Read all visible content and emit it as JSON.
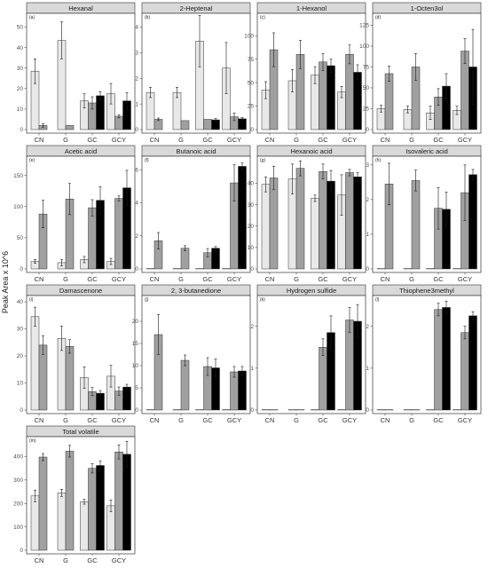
{
  "y_axis_title": "Peak Area x 10^6",
  "chart_data": {
    "type": "bar",
    "categories": [
      "CN",
      "G",
      "GC",
      "GCY"
    ],
    "series_colors": [
      "#e8e8e8",
      "#a0a0a0",
      "#000000"
    ],
    "panels": [
      {
        "tag": "(a)",
        "title": "Hexanal",
        "ylim": [
          0,
          55
        ],
        "ticks": [
          0,
          10,
          20,
          30,
          40,
          50
        ],
        "values": [
          [
            28.5,
            2.0,
            null
          ],
          [
            43.5,
            2.0,
            null
          ],
          [
            14.0,
            13.0,
            16.5
          ],
          [
            17.5,
            6.5,
            14.0
          ]
        ],
        "errors": [
          [
            6.0,
            0.8,
            null
          ],
          [
            9.0,
            0,
            null
          ],
          [
            3.5,
            3.0,
            2.0
          ],
          [
            5.0,
            0.8,
            4.0
          ]
        ]
      },
      {
        "tag": "(b)",
        "title": "2-Heptenal",
        "ylim": [
          0,
          4.4
        ],
        "ticks": [
          0,
          1,
          2,
          3,
          4
        ],
        "values": [
          [
            1.45,
            0.4,
            null
          ],
          [
            1.45,
            0.35,
            null
          ],
          [
            3.45,
            0.4,
            0.38
          ],
          [
            2.4,
            0.5,
            0.42
          ]
        ],
        "errors": [
          [
            0.2,
            0.05,
            null
          ],
          [
            0.2,
            0,
            null
          ],
          [
            1.0,
            0,
            0.05
          ],
          [
            1.0,
            0.15,
            0.05
          ]
        ]
      },
      {
        "tag": "(c)",
        "title": "1-Hexanol",
        "ylim": [
          0,
          120
        ],
        "ticks": [
          0,
          25,
          50,
          75,
          100
        ],
        "values": [
          [
            42,
            85,
            null
          ],
          [
            52,
            80,
            null
          ],
          [
            58,
            72,
            68
          ],
          [
            40,
            80,
            61
          ]
        ],
        "errors": [
          [
            9,
            18,
            null
          ],
          [
            12,
            15,
            null
          ],
          [
            9,
            9,
            7
          ],
          [
            6,
            10,
            8
          ]
        ]
      },
      {
        "tag": "(d)",
        "title": "1-Octen3ol",
        "ylim": [
          0,
          135
        ],
        "ticks": [
          0,
          25,
          50,
          75,
          100,
          125
        ],
        "values": [
          [
            25,
            67,
            null
          ],
          [
            24,
            75,
            null
          ],
          [
            20,
            39,
            52
          ],
          [
            23,
            94,
            75
          ]
        ],
        "errors": [
          [
            4,
            9,
            null
          ],
          [
            4,
            16,
            null
          ],
          [
            8,
            10,
            15
          ],
          [
            5,
            15,
            45
          ]
        ]
      },
      {
        "tag": "(e)",
        "title": "Acetic acid",
        "ylim": [
          0,
          175
        ],
        "ticks": [
          0,
          50,
          100,
          150
        ],
        "values": [
          [
            12,
            88,
            null
          ],
          [
            10,
            112,
            null
          ],
          [
            15,
            98,
            110
          ],
          [
            12,
            113,
            130
          ]
        ],
        "errors": [
          [
            3,
            22,
            null
          ],
          [
            5,
            25,
            null
          ],
          [
            5,
            13,
            22
          ],
          [
            5,
            4,
            28
          ]
        ]
      },
      {
        "tag": "(f)",
        "title": "Butanoic acid",
        "ylim": [
          0,
          6.6
        ],
        "ticks": [
          0,
          2,
          4,
          6
        ],
        "values": [
          [
            0,
            1.7,
            null
          ],
          [
            0,
            1.25,
            null
          ],
          [
            0,
            0.98,
            1.25
          ],
          [
            0,
            5.2,
            6.2
          ]
        ],
        "errors": [
          [
            0,
            0.5,
            null
          ],
          [
            0,
            0.15,
            null
          ],
          [
            0,
            0.25,
            0.1
          ],
          [
            0,
            1.1,
            0.2
          ]
        ]
      },
      {
        "tag": "(g)",
        "title": "Hexanoic acid",
        "ylim": [
          0,
          51
        ],
        "ticks": [
          0,
          10,
          20,
          30,
          40
        ],
        "values": [
          [
            39.5,
            42.5,
            null
          ],
          [
            42,
            47,
            null
          ],
          [
            33,
            45.5,
            41
          ],
          [
            34.5,
            45,
            43
          ]
        ],
        "errors": [
          [
            3.5,
            5.5,
            null
          ],
          [
            7.0,
            3.5,
            null
          ],
          [
            1.5,
            3.5,
            5.0
          ],
          [
            9.5,
            1.5,
            2.0
          ]
        ]
      },
      {
        "tag": "(h)",
        "title": "Isovaleric acid",
        "ylim": [
          0,
          3.15
        ],
        "ticks": [
          0,
          1,
          2,
          3
        ],
        "values": [
          [
            0,
            2.45,
            null
          ],
          [
            0,
            2.55,
            null
          ],
          [
            0,
            1.75,
            1.72
          ],
          [
            0,
            2.2,
            2.72
          ]
        ],
        "errors": [
          [
            0,
            0.6,
            null
          ],
          [
            0,
            0.3,
            null
          ],
          [
            0,
            0.6,
            0.5
          ],
          [
            0,
            0.8,
            0.15
          ]
        ]
      },
      {
        "tag": "(i)",
        "title": "Damascenone",
        "ylim": [
          0,
          41
        ],
        "ticks": [
          0,
          10,
          20,
          30,
          40
        ],
        "values": [
          [
            34.5,
            24.0,
            null
          ],
          [
            26.5,
            23.5,
            null
          ],
          [
            12.0,
            6.8,
            6.2
          ],
          [
            12.5,
            7.0,
            8.5
          ]
        ],
        "errors": [
          [
            3.5,
            3.5,
            null
          ],
          [
            4.5,
            2.5,
            null
          ],
          [
            4.0,
            1.5,
            1.0
          ],
          [
            4.0,
            1.5,
            1.0
          ]
        ]
      },
      {
        "tag": "(j)",
        "title": "2, 3-butanedione",
        "ylim": [
          0,
          25
        ],
        "ticks": [
          0,
          5,
          10,
          15,
          20
        ],
        "values": [
          [
            0,
            17,
            null
          ],
          [
            0,
            11.2,
            null
          ],
          [
            0,
            9.8,
            9.5
          ],
          [
            0,
            8.6,
            8.8
          ]
        ],
        "errors": [
          [
            0,
            4.5,
            null
          ],
          [
            0,
            1.2,
            null
          ],
          [
            0,
            2.0,
            2.0
          ],
          [
            0,
            1.2,
            1.0
          ]
        ]
      },
      {
        "tag": "(k)",
        "title": "Hydrogen sulfide",
        "ylim": [
          0,
          2.65
        ],
        "ticks": [
          0,
          1,
          2
        ],
        "values": [
          [
            0,
            0,
            null
          ],
          [
            0,
            0,
            null
          ],
          [
            0,
            1.5,
            1.85
          ],
          [
            0,
            2.15,
            2.12
          ]
        ],
        "errors": [
          [
            0,
            0,
            null
          ],
          [
            0,
            0,
            null
          ],
          [
            0,
            0.2,
            0.4
          ],
          [
            0,
            0.3,
            0.4
          ]
        ]
      },
      {
        "tag": "(l)",
        "title": "Thiophene3methyl",
        "ylim": [
          0,
          2.65
        ],
        "ticks": [
          0,
          1,
          2
        ],
        "values": [
          [
            0,
            0,
            null
          ],
          [
            0,
            0,
            null
          ],
          [
            0,
            2.4,
            2.45
          ],
          [
            0,
            1.85,
            2.25
          ]
        ],
        "errors": [
          [
            0,
            0,
            null
          ],
          [
            0,
            0,
            null
          ],
          [
            0,
            0.15,
            0.15
          ],
          [
            0,
            0.15,
            0.1
          ]
        ]
      },
      {
        "tag": "(m)",
        "title": "Total volatile",
        "ylim": [
          0,
          470
        ],
        "ticks": [
          0,
          100,
          200,
          300,
          400
        ],
        "values": [
          [
            232,
            398,
            null
          ],
          [
            245,
            423,
            null
          ],
          [
            207,
            350,
            362
          ],
          [
            190,
            420,
            410
          ]
        ],
        "errors": [
          [
            25,
            15,
            null
          ],
          [
            15,
            25,
            null
          ],
          [
            10,
            20,
            20
          ],
          [
            25,
            30,
            55
          ]
        ]
      }
    ]
  }
}
